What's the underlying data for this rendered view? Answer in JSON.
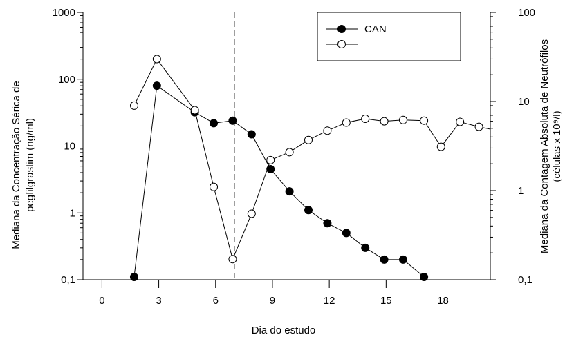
{
  "chart_data": {
    "type": "line",
    "xlabel": "Dia do estudo",
    "ylabel_left_line1": "Mediana da Concentração Sérica de",
    "ylabel_left_line2": "pegfilgrastim (ng/ml)",
    "ylabel_right_line1": "Mediana da Contagem Absoluta de Neutrófilos",
    "ylabel_right_line2": "(células x 10⁹/l)",
    "x_ticks": [
      0,
      3,
      6,
      9,
      12,
      15,
      18
    ],
    "x_tick_labels": [
      "0",
      "3",
      "6",
      "9",
      "12",
      "15",
      "18"
    ],
    "xlim": [
      -1,
      20.5
    ],
    "y_left": {
      "scale": "log",
      "lim": [
        0.1,
        1000
      ],
      "ticks": [
        0.1,
        1,
        10,
        100,
        1000
      ],
      "tick_labels": [
        "0,1",
        "1",
        "10",
        "100",
        "1000"
      ]
    },
    "y_right": {
      "scale": "log",
      "lim": [
        0.1,
        100
      ],
      "ticks": [
        0.1,
        1,
        10,
        100
      ],
      "tick_labels": [
        "0,1",
        "1",
        "10",
        "100"
      ]
    },
    "reference_line_x": 7,
    "legend": {
      "placement": "top-right",
      "entries": [
        {
          "label": "CAN",
          "marker": "filled-circle"
        },
        {
          "label": "",
          "marker": "open-circle"
        }
      ]
    },
    "series": [
      {
        "name": "CAN",
        "axis": "left",
        "marker": "filled",
        "x": [
          1.7,
          2.9,
          4.9,
          5.9,
          6.9,
          7.9,
          8.9,
          9.9,
          10.9,
          11.9,
          12.9,
          13.9,
          14.9,
          15.9,
          17
        ],
        "y": [
          0.11,
          80,
          32,
          22,
          24,
          15,
          4.5,
          2.1,
          1.1,
          0.7,
          0.5,
          0.3,
          0.2,
          0.2,
          0.11
        ]
      },
      {
        "axis": "right",
        "marker": "open",
        "x": [
          1.7,
          2.9,
          4.9,
          5.9,
          6.9,
          7.9,
          8.9,
          9.9,
          10.9,
          11.9,
          12.9,
          13.9,
          14.9,
          15.9,
          17,
          17.9,
          18.9,
          19.9,
          20.9
        ],
        "y": [
          9,
          30,
          8,
          1.1,
          0.17,
          0.55,
          2.2,
          2.7,
          3.7,
          4.7,
          5.8,
          6.4,
          6,
          6.2,
          6.1,
          3.1,
          5.9,
          5.2,
          4.7
        ]
      }
    ]
  }
}
